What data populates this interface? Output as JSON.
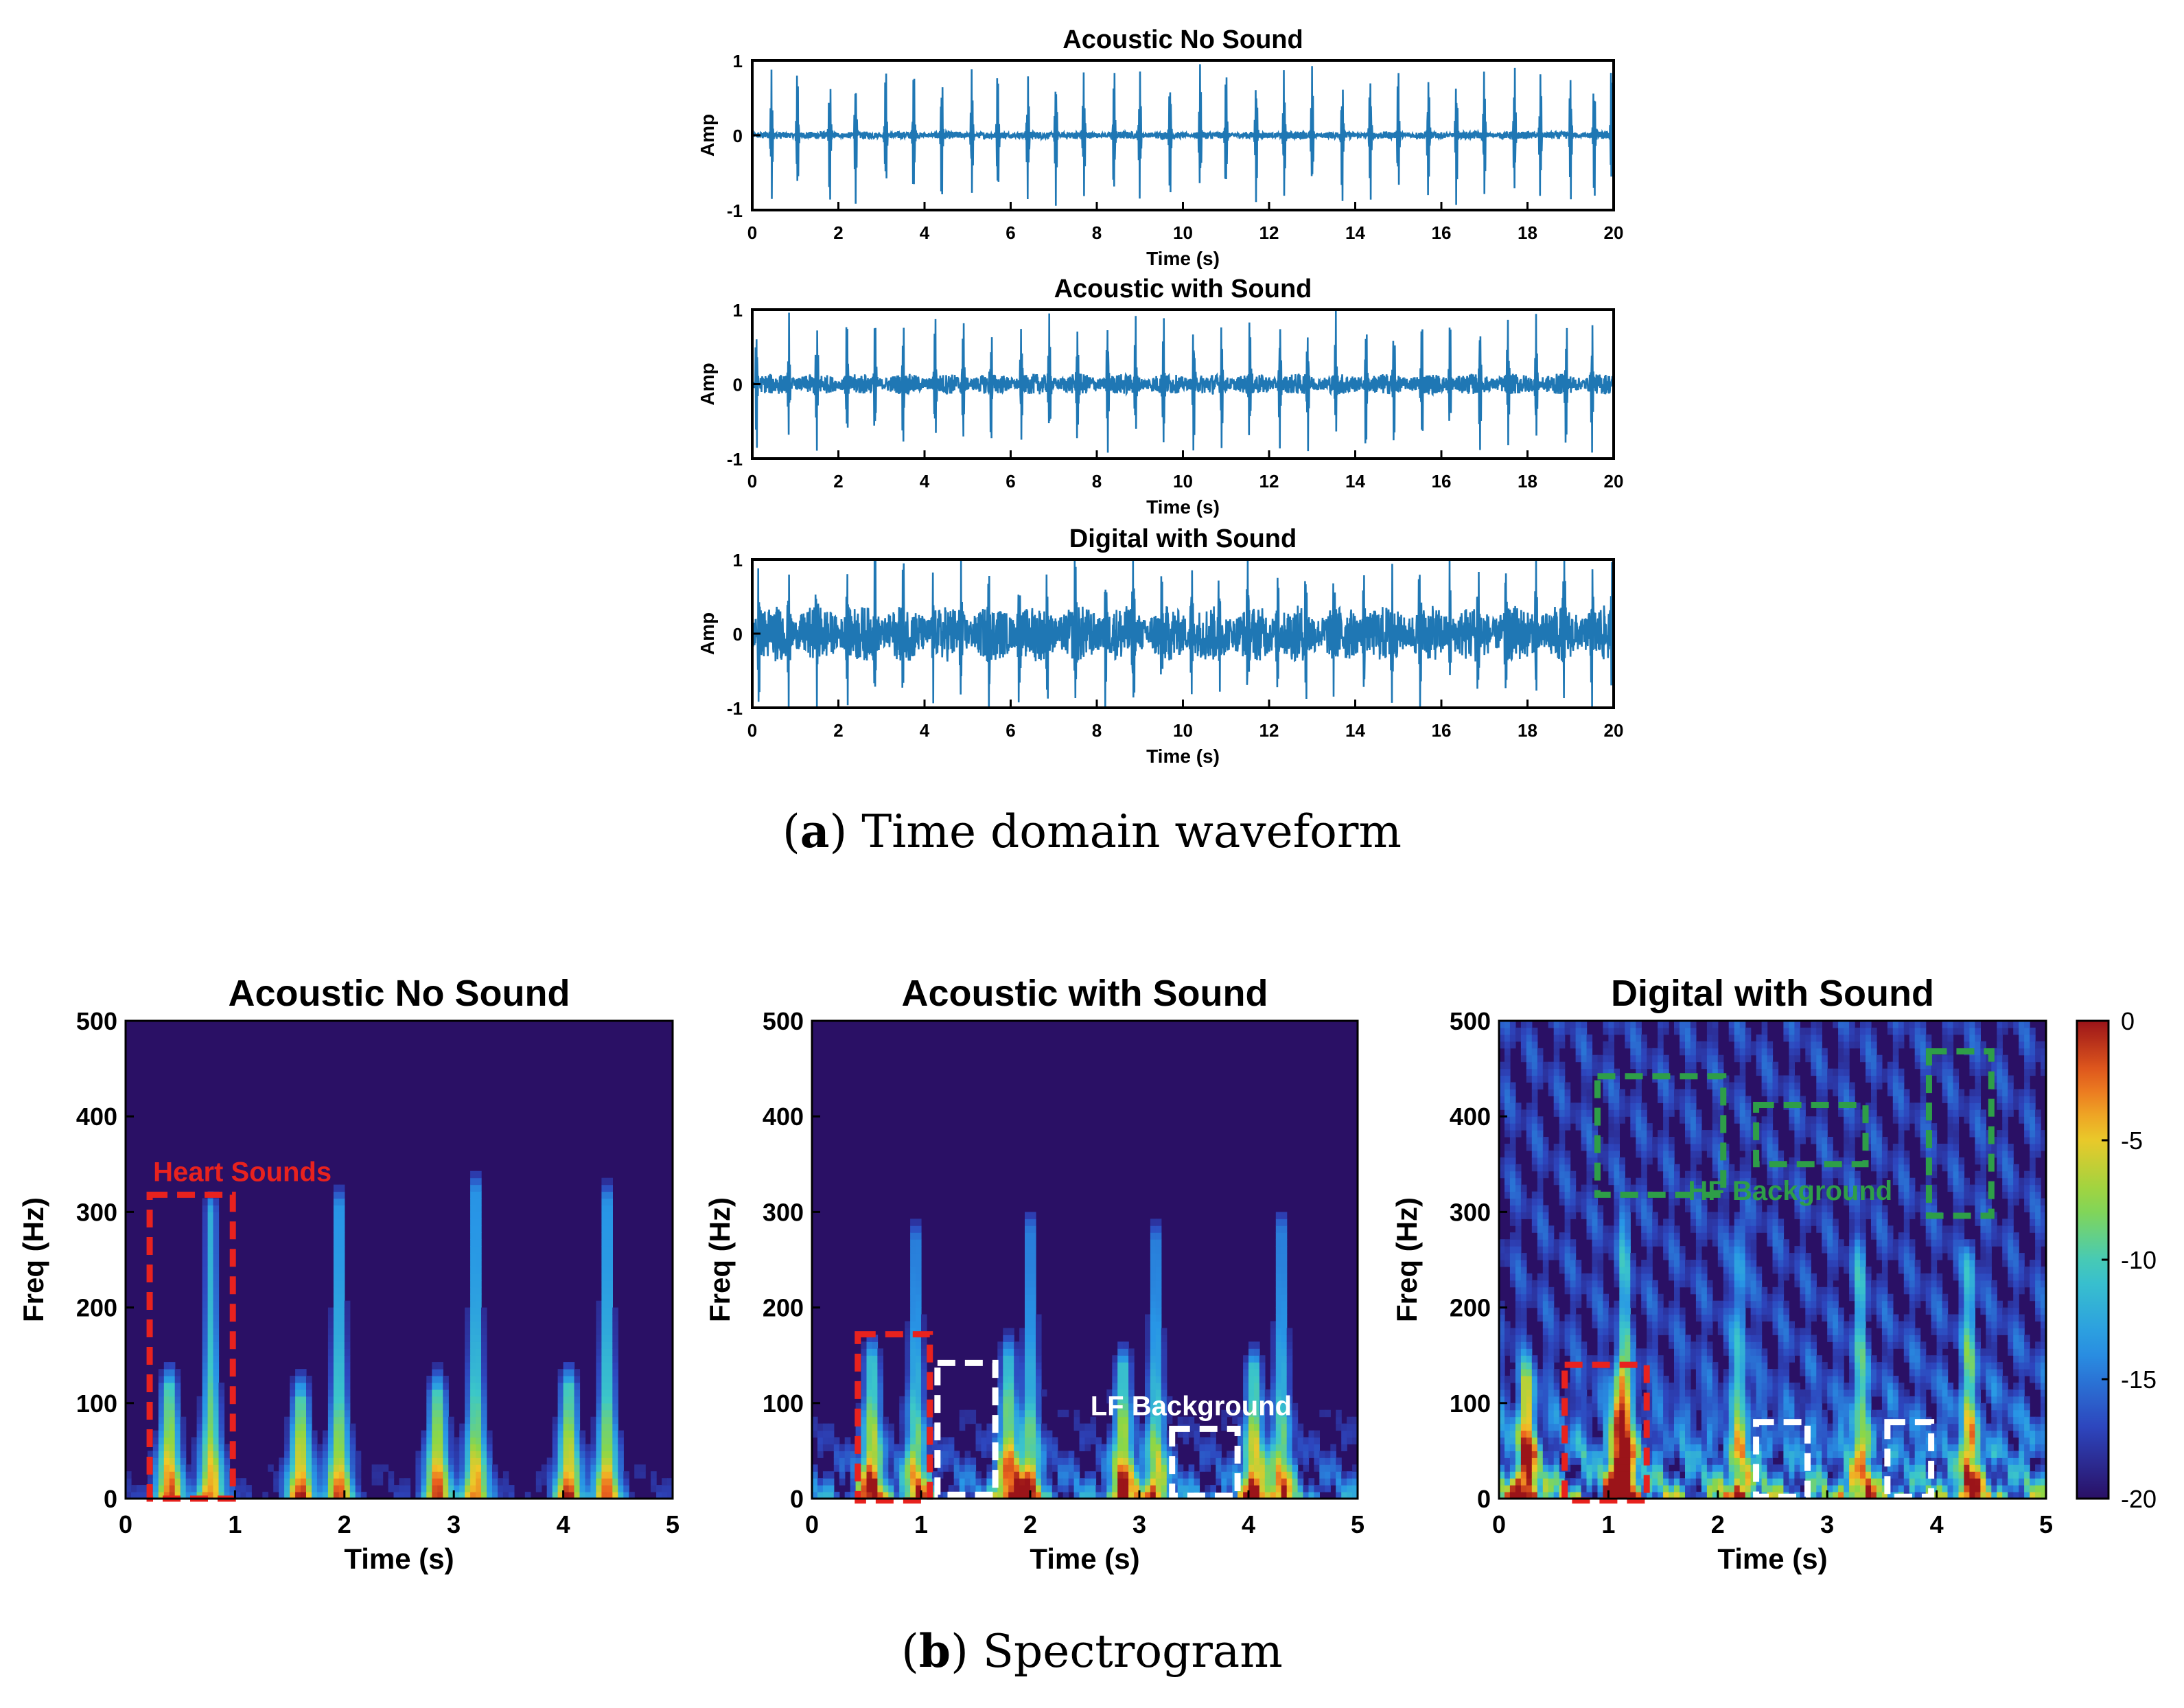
{
  "colors": {
    "waveform": "#1f77b4",
    "heart_box": "#e8221e",
    "lf_box": "#ffffff",
    "hf_box": "#2e9e48",
    "spectro_bg": "#2a1065",
    "axis": "#000000"
  },
  "captions": {
    "a_letter": "a",
    "a_text": "Time domain waveform",
    "b_letter": "b",
    "b_text": "Spectrogram"
  },
  "chart_data": [
    {
      "type": "line",
      "title": "Acoustic No Sound",
      "xlabel": "Time (s)",
      "ylabel": "Amp",
      "xlim": [
        0,
        20
      ],
      "ylim": [
        -1,
        1
      ],
      "xticks": [
        "0",
        "2",
        "4",
        "6",
        "8",
        "10",
        "12",
        "14",
        "16",
        "18",
        "20"
      ],
      "yticks": [
        "-1",
        "0",
        "1"
      ],
      "series": [
        {
          "noise_level": 0.05,
          "beats_s": [
            0.45,
            1.05,
            1.8,
            2.4,
            3.1,
            3.75,
            4.4,
            5.1,
            5.7,
            6.4,
            7.05,
            7.7,
            8.4,
            9.0,
            9.7,
            10.4,
            11.0,
            11.7,
            12.35,
            13.0,
            13.7,
            14.35,
            15.0,
            15.7,
            16.35,
            17.0,
            17.7,
            18.3,
            19.0,
            19.55,
            19.95
          ],
          "peak_amp": 0.95
        }
      ]
    },
    {
      "type": "line",
      "title": "Acoustic with Sound",
      "xlabel": "Time (s)",
      "ylabel": "Amp",
      "xlim": [
        0,
        20
      ],
      "ylim": [
        -1,
        1
      ],
      "xticks": [
        "0",
        "2",
        "4",
        "6",
        "8",
        "10",
        "12",
        "14",
        "16",
        "18",
        "20"
      ],
      "yticks": [
        "-1",
        "0",
        "1"
      ],
      "series": [
        {
          "noise_level": 0.14,
          "beats_s": [
            0.1,
            0.85,
            1.5,
            2.2,
            2.85,
            3.5,
            4.25,
            4.9,
            5.55,
            6.25,
            6.9,
            7.55,
            8.25,
            8.9,
            9.55,
            10.25,
            10.9,
            11.55,
            12.25,
            12.9,
            13.55,
            14.25,
            14.9,
            15.55,
            16.2,
            16.9,
            17.55,
            18.2,
            18.9,
            19.5
          ],
          "peak_amp": 0.95
        }
      ]
    },
    {
      "type": "line",
      "title": "Digital with Sound",
      "xlabel": "Time (s)",
      "ylabel": "Amp",
      "xlim": [
        0,
        20
      ],
      "ylim": [
        -1,
        1
      ],
      "xticks": [
        "0",
        "2",
        "4",
        "6",
        "8",
        "10",
        "12",
        "14",
        "16",
        "18",
        "20"
      ],
      "yticks": [
        "-1",
        "0",
        "1"
      ],
      "series": [
        {
          "noise_level": 0.38,
          "beats_s": [
            0.15,
            0.85,
            1.5,
            2.2,
            2.85,
            3.5,
            4.2,
            4.85,
            5.5,
            6.2,
            6.85,
            7.5,
            8.2,
            8.85,
            9.5,
            10.2,
            10.85,
            11.5,
            12.2,
            12.85,
            13.5,
            14.2,
            14.85,
            15.5,
            16.2,
            16.85,
            17.5,
            18.2,
            18.85,
            19.5,
            19.95
          ],
          "peak_amp": 0.98
        }
      ]
    },
    {
      "type": "heatmap",
      "title": "Acoustic No Sound",
      "xlabel": "Time (s)",
      "ylabel": "Freq (Hz)",
      "xlim": [
        0,
        5
      ],
      "ylim": [
        0,
        500
      ],
      "xticks": [
        "0",
        "1",
        "2",
        "3",
        "4",
        "5"
      ],
      "yticks": [
        "0",
        "100",
        "200",
        "300",
        "400",
        "500"
      ],
      "events": [
        {
          "t": 0.4,
          "f_top": 120,
          "strength": 0.9
        },
        {
          "t": 0.78,
          "f_top": 300,
          "strength": 0.85
        },
        {
          "t": 1.6,
          "f_top": 110,
          "strength": 0.9
        },
        {
          "t": 1.95,
          "f_top": 305,
          "strength": 0.85
        },
        {
          "t": 2.85,
          "f_top": 115,
          "strength": 0.9
        },
        {
          "t": 3.2,
          "f_top": 320,
          "strength": 0.85
        },
        {
          "t": 4.05,
          "f_top": 120,
          "strength": 0.9
        },
        {
          "t": 4.4,
          "f_top": 310,
          "strength": 0.85
        }
      ],
      "lf_noise": 0.15,
      "hf_noise": 0.0,
      "boxes": [
        {
          "label": "Heart Sounds",
          "kind": "heart",
          "x0": 0.22,
          "x1": 0.98,
          "y0": 0,
          "y1": 318,
          "label_pos": "above"
        }
      ]
    },
    {
      "type": "heatmap",
      "title": "Acoustic with Sound",
      "xlabel": "Time (s)",
      "ylabel": "Freq (Hz)",
      "xlim": [
        0,
        5
      ],
      "ylim": [
        0,
        500
      ],
      "xticks": [
        "0",
        "1",
        "2",
        "3",
        "4",
        "5"
      ],
      "yticks": [
        "0",
        "100",
        "200",
        "300",
        "400",
        "500"
      ],
      "events": [
        {
          "t": 0.55,
          "f_top": 150,
          "strength": 0.85
        },
        {
          "t": 0.95,
          "f_top": 270,
          "strength": 0.7
        },
        {
          "t": 1.8,
          "f_top": 150,
          "strength": 0.85
        },
        {
          "t": 2.0,
          "f_top": 280,
          "strength": 0.7
        },
        {
          "t": 2.85,
          "f_top": 140,
          "strength": 0.85
        },
        {
          "t": 3.15,
          "f_top": 270,
          "strength": 0.7
        },
        {
          "t": 4.05,
          "f_top": 140,
          "strength": 0.85
        },
        {
          "t": 4.3,
          "f_top": 280,
          "strength": 0.7
        }
      ],
      "lf_noise": 0.45,
      "hf_noise": 0.05,
      "boxes": [
        {
          "label": "",
          "kind": "heart",
          "x0": 0.42,
          "x1": 1.08,
          "y0": -2,
          "y1": 172
        },
        {
          "label": "",
          "kind": "lf",
          "x0": 1.15,
          "x1": 1.68,
          "y0": 4,
          "y1": 142
        },
        {
          "label": "LF Background",
          "kind": "lf",
          "x0": 3.3,
          "x1": 3.9,
          "y0": 3,
          "y1": 73,
          "label_pos": "above"
        }
      ]
    },
    {
      "type": "heatmap",
      "title": "Digital with Sound",
      "xlabel": "Time (s)",
      "ylabel": "Freq (Hz)",
      "xlim": [
        0,
        5
      ],
      "ylim": [
        0,
        500
      ],
      "xticks": [
        "0",
        "1",
        "2",
        "3",
        "4",
        "5"
      ],
      "yticks": [
        "0",
        "100",
        "200",
        "300",
        "400",
        "500"
      ],
      "events": [
        {
          "t": 0.25,
          "f_top": 130,
          "strength": 0.9
        },
        {
          "t": 1.1,
          "f_top": 130,
          "strength": 0.85
        },
        {
          "t": 1.15,
          "f_top": 290,
          "strength": 0.6
        },
        {
          "t": 2.2,
          "f_top": 280,
          "strength": 0.6
        },
        {
          "t": 3.3,
          "f_top": 260,
          "strength": 0.6
        },
        {
          "t": 4.3,
          "f_top": 250,
          "strength": 0.7
        }
      ],
      "lf_noise": 0.75,
      "hf_noise": 0.3,
      "boxes": [
        {
          "label": "",
          "kind": "hf",
          "x0": 0.9,
          "x1": 2.05,
          "y0": 318,
          "y1": 442
        },
        {
          "label": "HF Background",
          "kind": "hf",
          "x0": 2.35,
          "x1": 3.35,
          "y0": 350,
          "y1": 412,
          "label_pos": "below"
        },
        {
          "label": "",
          "kind": "hf",
          "x0": 3.93,
          "x1": 4.5,
          "y0": 296,
          "y1": 468
        },
        {
          "label": "",
          "kind": "heart",
          "x0": 0.6,
          "x1": 1.35,
          "y0": -2,
          "y1": 140
        },
        {
          "label": "",
          "kind": "lf",
          "x0": 2.35,
          "x1": 2.82,
          "y0": 2,
          "y1": 80
        },
        {
          "label": "",
          "kind": "lf",
          "x0": 3.55,
          "x1": 3.95,
          "y0": 2,
          "y1": 80
        }
      ],
      "colorbar": {
        "range": [
          -20,
          0
        ],
        "ticks": [
          "0",
          "-5",
          "-10",
          "-15",
          "-20"
        ],
        "colormap": "jet",
        "placement": "right"
      }
    }
  ]
}
